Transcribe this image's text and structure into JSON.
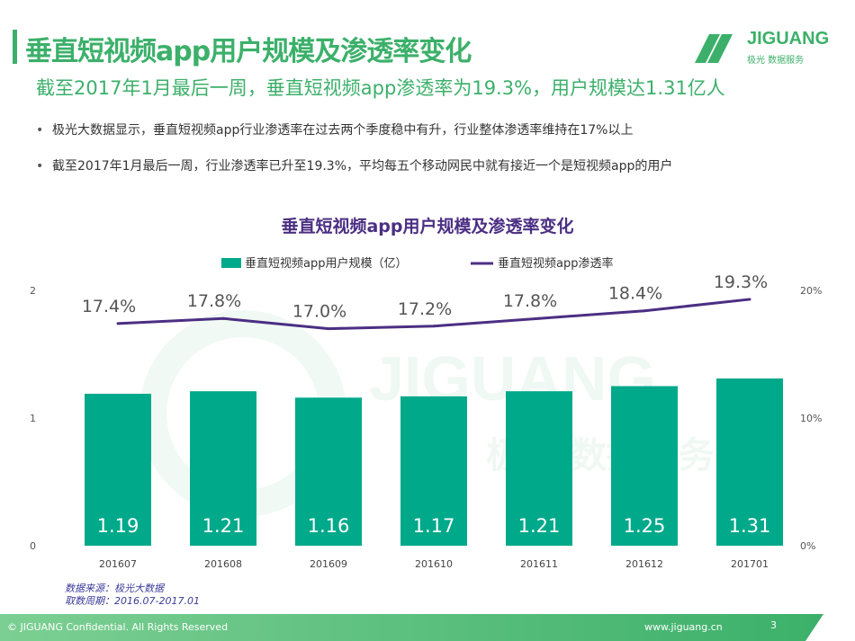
{
  "header": {
    "title": "垂直短视频app用户规模及渗透率变化",
    "subtitle": "截至2017年1月最后一周，垂直短视频app渗透率为19.3%，用户规模达1.31亿人"
  },
  "logo": {
    "name": "JIGUANG",
    "tagline": "极光 数据服务"
  },
  "bullets": [
    "极光大数据显示，垂直短视频app行业渗透率在过去两个季度稳中有升，行业整体渗透率维持在17%以上",
    "截至2017年1月最后一周，行业渗透率已升至19.3%，平均每五个移动网民中就有接近一个是短视频app的用户"
  ],
  "source": {
    "line1": "数据来源：极光大数据",
    "line2": "取数周期：2016.07-2017.01"
  },
  "footer": {
    "copyright": "© JIGUANG Confidential. All Rights Reserved",
    "url": "www.jiguang.cn",
    "page": "3"
  },
  "colors": {
    "brand": "#3cb06a",
    "bar": "#00a98a",
    "line": "#4b2f83"
  },
  "chart_data": {
    "type": "bar+line",
    "title": "垂直短视频app用户规模及渗透率变化",
    "categories": [
      "201607",
      "201608",
      "201609",
      "201610",
      "201611",
      "201612",
      "201701"
    ],
    "series": [
      {
        "name": "垂直短视频app用户规模（亿）",
        "type": "bar",
        "axis": "left",
        "values": [
          1.19,
          1.21,
          1.16,
          1.17,
          1.21,
          1.25,
          1.31
        ],
        "labels": [
          "1.19",
          "1.21",
          "1.16",
          "1.17",
          "1.21",
          "1.25",
          "1.31"
        ]
      },
      {
        "name": "垂直短视频app渗透率",
        "type": "line",
        "axis": "right",
        "values": [
          17.4,
          17.8,
          17.0,
          17.2,
          17.8,
          18.4,
          19.3
        ],
        "labels": [
          "17.4%",
          "17.8%",
          "17.0%",
          "17.2%",
          "17.8%",
          "18.4%",
          "19.3%"
        ]
      }
    ],
    "left_axis": {
      "ylim": [
        0,
        2
      ],
      "ticks": [
        "0",
        "1",
        "2"
      ]
    },
    "right_axis": {
      "ylim": [
        0,
        20
      ],
      "ticks": [
        "0%",
        "10%",
        "20%"
      ]
    },
    "legend": "top",
    "grid": false,
    "watermark": "JIGUANG 极光 数据服务"
  }
}
